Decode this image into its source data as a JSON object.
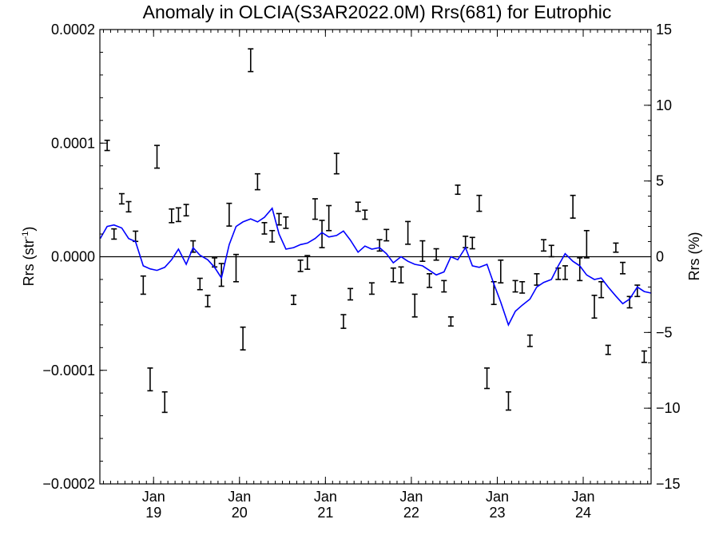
{
  "chart_data": {
    "type": "scatter",
    "title": "Anomaly in OLCIA(S3AR2022.0M) Rrs(681) for Eutrophic",
    "ylabel_left_main": "Rrs (str",
    "ylabel_left_sup": "-1",
    "ylabel_left_close": ")",
    "ylabel_right": "Rrs (%)",
    "x_start": 2018.375,
    "x_end": 2024.79,
    "ylim_left": [
      -0.0002,
      0.0002
    ],
    "ylim_right": [
      -15,
      15
    ],
    "left_ticks": [
      {
        "value": 0.0002,
        "label": "0.0002"
      },
      {
        "value": 0.0001,
        "label": "0.0001"
      },
      {
        "value": 0.0,
        "label": "0.0000"
      },
      {
        "value": -0.0001,
        "label": "−0.0001"
      },
      {
        "value": -0.0002,
        "label": "−0.0002"
      }
    ],
    "right_ticks": [
      {
        "value": 15,
        "label": "15"
      },
      {
        "value": 10,
        "label": "10"
      },
      {
        "value": 5,
        "label": "5"
      },
      {
        "value": 0,
        "label": "0"
      },
      {
        "value": -5,
        "label": "−5"
      },
      {
        "value": -10,
        "label": "−10"
      },
      {
        "value": -15,
        "label": "−15"
      }
    ],
    "x_ticks": [
      {
        "value": 2019.0,
        "month": "Jan",
        "year": "19"
      },
      {
        "value": 2020.0,
        "month": "Jan",
        "year": "20"
      },
      {
        "value": 2021.0,
        "month": "Jan",
        "year": "21"
      },
      {
        "value": 2022.0,
        "month": "Jan",
        "year": "22"
      },
      {
        "value": 2023.0,
        "month": "Jan",
        "year": "23"
      },
      {
        "value": 2024.0,
        "month": "Jan",
        "year": "24"
      }
    ],
    "zero_line": true,
    "colors": {
      "points": "#000000",
      "line": "#0000ff",
      "axes": "#000000"
    },
    "series": [
      {
        "kind": "errorbars",
        "axis": "left",
        "x": [
          2018.46,
          2018.54,
          2018.63,
          2018.71,
          2018.79,
          2018.88,
          2018.96,
          2019.04,
          2019.13,
          2019.21,
          2019.29,
          2019.38,
          2019.46,
          2019.54,
          2019.63,
          2019.71,
          2019.79,
          2019.88,
          2019.96,
          2020.04,
          2020.13,
          2020.21,
          2020.29,
          2020.38,
          2020.46,
          2020.54,
          2020.63,
          2020.71,
          2020.79,
          2020.88,
          2020.96,
          2021.04,
          2021.13,
          2021.21,
          2021.29,
          2021.38,
          2021.46,
          2021.54,
          2021.63,
          2021.71,
          2021.79,
          2021.88,
          2021.96,
          2022.04,
          2022.13,
          2022.21,
          2022.29,
          2022.38,
          2022.46,
          2022.54,
          2022.63,
          2022.71,
          2022.79,
          2022.88,
          2022.96,
          2023.04,
          2023.13,
          2023.21,
          2023.29,
          2023.38,
          2023.46,
          2023.54,
          2023.63,
          2023.71,
          2023.79,
          2023.88,
          2023.96,
          2024.04,
          2024.13,
          2024.21,
          2024.29,
          2024.38,
          2024.46,
          2024.54,
          2024.63,
          2024.71
        ],
        "y": [
          9.8e-05,
          2e-05,
          5.1e-05,
          4.4e-05,
          1.8e-05,
          -2.5e-05,
          -0.000108,
          8.8e-05,
          -0.000128,
          3.6e-05,
          3.7e-05,
          4.1e-05,
          9e-06,
          -2.4e-05,
          -3.9e-05,
          -5e-06,
          -1.6e-05,
          3.7e-05,
          -1e-05,
          -7.2e-05,
          0.000173,
          6.6e-05,
          2.5e-05,
          1.8e-05,
          3.3e-05,
          3e-05,
          -3.8e-05,
          -8e-06,
          -5e-06,
          4.2e-05,
          2e-05,
          3.4e-05,
          8.2e-05,
          -5.7e-05,
          -3.3e-05,
          4.4e-05,
          3.7e-05,
          -2.8e-05,
          1e-05,
          1.9e-05,
          -1.6e-05,
          -1.6e-05,
          2.1e-05,
          -4.3e-05,
          5e-06,
          -2.1e-05,
          2e-06,
          -2.6e-05,
          -5.7e-05,
          5.9e-05,
          1.3e-05,
          1.2e-05,
          4.7e-05,
          -0.000107,
          -3.2e-05,
          -1.3e-05,
          -0.000127,
          -2.6e-05,
          -2.7e-05,
          -7.4e-05,
          -2e-05,
          1e-05,
          5e-06,
          -1.5e-05,
          -1.4e-05,
          4.4e-05,
          -1.1e-05,
          1.1e-05,
          -4.4e-05,
          -2.9e-05,
          -8.2e-05,
          8e-06,
          -1e-05,
          -4e-05,
          -3e-05,
          -8.8e-05
        ],
        "err": [
          4.5e-06,
          4.5e-06,
          4.5e-06,
          4.5e-06,
          4.5e-06,
          8e-06,
          1e-05,
          1e-05,
          9e-06,
          6e-06,
          6e-06,
          5e-06,
          5e-06,
          5e-06,
          5e-06,
          4e-06,
          1e-05,
          1e-05,
          1.2e-05,
          1e-05,
          1e-05,
          7e-06,
          5e-06,
          5e-06,
          5e-06,
          5e-06,
          4e-06,
          5e-06,
          6e-06,
          9e-06,
          1.2e-05,
          1.1e-05,
          9e-06,
          6e-06,
          5e-06,
          4e-06,
          4e-06,
          5e-06,
          5e-06,
          5e-06,
          6e-06,
          7e-06,
          1e-05,
          1e-05,
          9e-06,
          6e-06,
          5e-06,
          5e-06,
          4e-06,
          4e-06,
          5e-06,
          5e-06,
          7e-06,
          9e-06,
          1e-05,
          1e-05,
          8e-06,
          5e-06,
          5e-06,
          5e-06,
          5e-06,
          5e-06,
          5e-06,
          5e-06,
          6e-06,
          1e-05,
          1e-05,
          1.2e-05,
          1e-05,
          7e-06,
          4e-06,
          4e-06,
          5e-06,
          5e-06,
          5e-06,
          5e-06
        ]
      },
      {
        "kind": "line",
        "axis": "right",
        "x": [
          2018.38,
          2018.46,
          2018.54,
          2018.63,
          2018.71,
          2018.79,
          2018.88,
          2018.96,
          2019.04,
          2019.13,
          2019.21,
          2019.29,
          2019.38,
          2019.46,
          2019.54,
          2019.63,
          2019.71,
          2019.79,
          2019.88,
          2019.96,
          2020.04,
          2020.13,
          2020.21,
          2020.29,
          2020.38,
          2020.46,
          2020.54,
          2020.63,
          2020.71,
          2020.79,
          2020.88,
          2020.96,
          2021.04,
          2021.13,
          2021.21,
          2021.29,
          2021.38,
          2021.46,
          2021.54,
          2021.63,
          2021.71,
          2021.79,
          2021.88,
          2021.96,
          2022.04,
          2022.13,
          2022.21,
          2022.29,
          2022.38,
          2022.46,
          2022.54,
          2022.63,
          2022.71,
          2022.79,
          2022.88,
          2022.96,
          2023.04,
          2023.13,
          2023.21,
          2023.29,
          2023.38,
          2023.46,
          2023.54,
          2023.63,
          2023.71,
          2023.79,
          2023.88,
          2023.96,
          2024.04,
          2024.13,
          2024.21,
          2024.29,
          2024.38,
          2024.46,
          2024.54,
          2024.63,
          2024.71,
          2024.79
        ],
        "y": [
          1.2,
          2.0,
          2.1,
          1.9,
          1.2,
          1.0,
          -0.6,
          -0.8,
          -0.9,
          -0.7,
          -0.2,
          0.5,
          -0.5,
          0.6,
          0.1,
          -0.2,
          -0.7,
          -1.4,
          0.8,
          2.0,
          2.3,
          2.5,
          2.3,
          2.6,
          3.2,
          1.5,
          0.5,
          0.6,
          0.8,
          0.9,
          1.2,
          1.6,
          1.3,
          1.4,
          1.7,
          1.1,
          0.3,
          0.7,
          0.5,
          0.6,
          0.2,
          -0.4,
          0.0,
          -0.3,
          -0.5,
          -0.6,
          -0.9,
          -1.2,
          -1.0,
          0.0,
          -0.2,
          0.6,
          -0.6,
          -0.7,
          -0.5,
          -1.8,
          -3.0,
          -4.5,
          -3.6,
          -3.2,
          -2.8,
          -2.0,
          -1.7,
          -1.5,
          -0.6,
          0.2,
          -0.3,
          -0.6,
          -1.2,
          -1.5,
          -1.4,
          -2.0,
          -2.6,
          -3.1,
          -2.8,
          -2.0,
          -2.3,
          -2.4
        ]
      }
    ]
  }
}
